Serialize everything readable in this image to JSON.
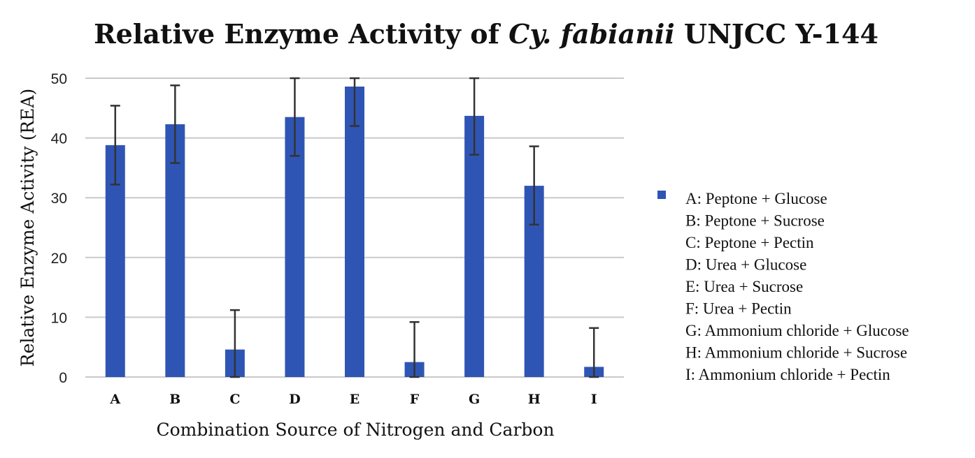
{
  "chart_data": {
    "type": "bar",
    "title_main": "Relative Enzyme Activity of ",
    "title_italic": "Cy. fabianii",
    "title_end": " UNJCC Y-144",
    "xlabel": "Combination Source of Nitrogen and Carbon",
    "ylabel": "Relative Enzyme Activity (REA)",
    "ylim": [
      0,
      50
    ],
    "yticks": [
      0,
      10,
      20,
      30,
      40,
      50
    ],
    "grid": true,
    "legend_position": "right",
    "bar_color": "#2f55b4",
    "categories": [
      "A",
      "B",
      "C",
      "D",
      "E",
      "F",
      "G",
      "H",
      "I"
    ],
    "values": [
      38.8,
      42.3,
      4.6,
      43.5,
      48.6,
      2.5,
      43.7,
      32.0,
      1.7
    ],
    "error_upper": [
      45.4,
      48.8,
      11.2,
      50.0,
      50.0,
      9.2,
      50.0,
      38.6,
      8.2
    ],
    "error_lower": [
      32.2,
      35.8,
      0,
      37.0,
      42.0,
      0,
      37.2,
      25.5,
      0
    ],
    "legend": [
      "A: Peptone + Glucose",
      "B: Peptone + Sucrose",
      "C: Peptone + Pectin",
      "D: Urea + Glucose",
      "E: Urea + Sucrose",
      "F: Urea + Pectin",
      "G: Ammonium chloride + Glucose",
      "H: Ammonium chloride + Sucrose",
      "I: Ammonium chloride + Pectin"
    ]
  }
}
